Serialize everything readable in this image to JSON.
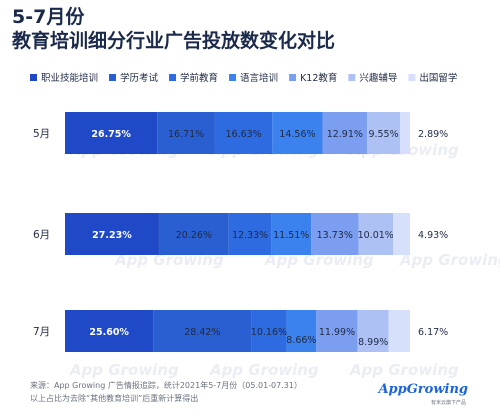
{
  "title_line1": "5-7月份",
  "title_line2": "教育培训细分行业广告投放数变化对比",
  "footer_line1": "来源：App Growing 广告情报追踪，统计2021年5-7月份（05.01-07.31）",
  "footer_line2": "以上占比为去除“其他教育培训”后重新计算得出",
  "logo_text": "AppGrowing",
  "logo_sub": "有米云旗下产品",
  "chart_data": {
    "type": "bar",
    "stacked": true,
    "orientation": "horizontal",
    "percent": true,
    "categories": [
      "5月",
      "6月",
      "7月"
    ],
    "series": [
      {
        "name": "职业技能培训",
        "values": [
          26.75,
          27.23,
          25.6
        ],
        "color": "#1f49c6"
      },
      {
        "name": "学历考试",
        "values": [
          16.71,
          20.26,
          28.42
        ],
        "color": "#2a5fd2"
      },
      {
        "name": "学前教育",
        "values": [
          16.63,
          12.33,
          10.16
        ],
        "color": "#2e6be0"
      },
      {
        "name": "语言培训",
        "values": [
          14.56,
          11.51,
          8.66
        ],
        "color": "#3b82ee"
      },
      {
        "name": "K12教育",
        "values": [
          12.91,
          13.73,
          11.99
        ],
        "color": "#7b9ef0"
      },
      {
        "name": "兴趣辅导",
        "values": [
          9.55,
          10.01,
          8.99
        ],
        "color": "#aec1f5"
      },
      {
        "name": "出国留学",
        "values": [
          2.89,
          4.93,
          6.17
        ],
        "color": "#d6e0fb"
      }
    ],
    "labels": [
      [
        "26.75%",
        "16.71%",
        "16.63%",
        "14.56%",
        "12.91%",
        "9.55%",
        "2.89%"
      ],
      [
        "27.23%",
        "20.26%",
        "12.33%",
        "11.51%",
        "13.73%",
        "10.01%",
        "4.93%"
      ],
      [
        "25.60%",
        "28.42%",
        "10.16%",
        "8.66%",
        "11.99%",
        "8.99%",
        "6.17%"
      ]
    ],
    "legend_position": "top",
    "watermark": "App Growing",
    "grid": false
  }
}
